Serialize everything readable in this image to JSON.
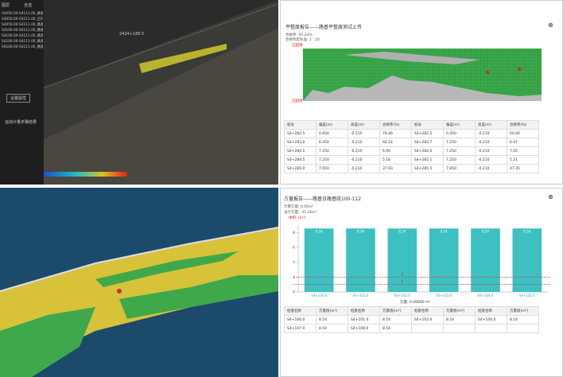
{
  "viewer3d": {
    "layer_header": "图层",
    "select_all": "全选",
    "layers": [
      "S4050.00-S4111.00_路基工",
      "S4050.00-S4111.00_已识别",
      "S4050.00-S4111.00_路基分",
      "S4100.00-S4111.00_路基分",
      "S4100.00-S4111.00_路基验",
      "S4100.00-S4111.00_路基",
      "S4100.00-S4111.00_路基面"
    ],
    "road_label": "2424+186.5",
    "settings_button": "设置属性",
    "result_link": "运动计量步骤结果"
  },
  "flatness_report": {
    "title": "平整度报告——路基平整度测试上传",
    "pass_rate": "合格率: 95.23%",
    "standard": "合格判定标准: 1 : 20",
    "upper_label": "已超限",
    "lower_label": "已超限",
    "table": {
      "headers": [
        "桩号",
        "偏差(m)",
        "高差(m)",
        "合格率(%)",
        "桩号",
        "偏差(m)",
        "高差(m)",
        "合格率(%)"
      ],
      "rows": [
        [
          "S4+282.5",
          "0.650",
          "-0.210",
          "76.46",
          "S4+282.5",
          "0.450",
          "-0.210",
          "60.66"
        ],
        [
          "S4+283.0",
          "6.450",
          "-0.210",
          "60.14",
          "S4+283.7",
          "7.250",
          "-0.210",
          "6.47"
        ],
        [
          "S4+284.1",
          "7.250",
          "-0.210",
          "6.96",
          "S4+284.0",
          "7.250",
          "-0.210",
          "7.05"
        ],
        [
          "S4+284.5",
          "7.250",
          "-0.210",
          "5.16",
          "S4+285.1",
          "7.250",
          "-0.210",
          "5.21"
        ],
        [
          "S4+285.0",
          "7.650",
          "-0.210",
          "37.93",
          "S4+285.5",
          "7.850",
          "-0.210",
          "47.35"
        ]
      ]
    }
  },
  "volume_report": {
    "title": "方量报告——路基日路基段100-112",
    "calc": "计算方量: 0.00m³",
    "design": "设计方量: -31.26m³",
    "unit": "体积: (m³)",
    "chart": {
      "type": "bar",
      "categories": [
        "S4+100.0",
        "S4+101.0",
        "S4+102.0",
        "S4+103.0",
        "S4+104.0",
        "S4+105.0"
      ],
      "values": [
        8.54,
        8.54,
        8.54,
        8.54,
        8.54,
        8.54
      ],
      "color": "#3cc0c0",
      "ylim": [
        0,
        9
      ],
      "yticks": [
        0,
        2,
        4,
        6,
        8
      ],
      "ref_lines": [
        2,
        1
      ]
    },
    "total": "方量: 0.00000 m³",
    "table": {
      "headers": [
        "桩基名称",
        "方量值(m³)",
        "桩基名称",
        "方量值(m³)",
        "桩基名称",
        "方量值(m³)",
        "桩基名称",
        "方量值(m³)"
      ],
      "rows": [
        [
          "S4+100.0",
          "8.54",
          "S4+101.0",
          "8.54",
          "S4+102.0",
          "8.54",
          "S4+106.0",
          "8.54"
        ],
        [
          "S4+107.0",
          "8.54",
          "S4+108.0",
          "8.54",
          "",
          "",
          "",
          ""
        ]
      ]
    }
  }
}
